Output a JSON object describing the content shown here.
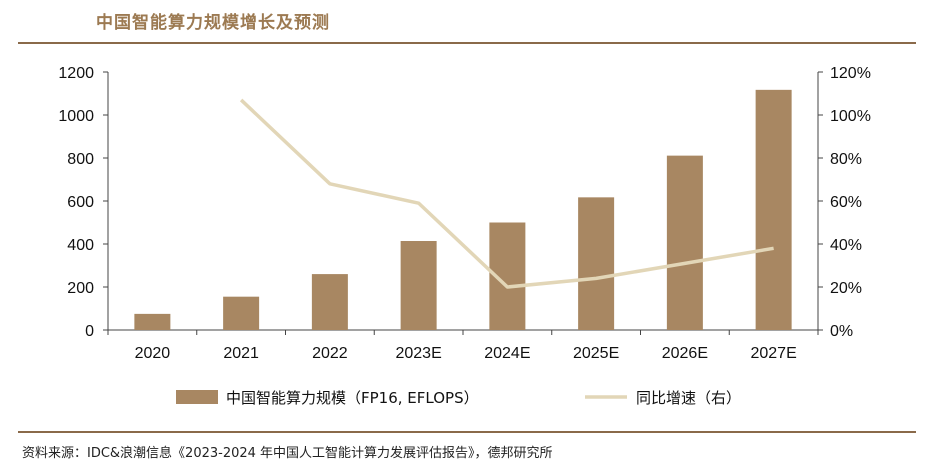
{
  "title": "中国智能算力规模增长及预测",
  "source": "资料来源：IDC&浪潮信息《2023-2024 年中国人工智能计算力发展评估报告》，德邦研究所",
  "chart_data": {
    "type": "bar",
    "categories": [
      "2020",
      "2021",
      "2022",
      "2023E",
      "2024E",
      "2025E",
      "2026E",
      "2027E"
    ],
    "series": [
      {
        "name": "中国智能算力规模（FP16, EFLOPS）",
        "type": "bar",
        "axis": "left",
        "color": "#a88762",
        "values": [
          75,
          155,
          260,
          414,
          500,
          617,
          811,
          1117
        ]
      },
      {
        "name": "同比增速（右）",
        "type": "line",
        "axis": "right",
        "color": "#e2d6b7",
        "values": [
          null,
          107,
          68,
          59,
          20,
          24,
          31,
          38
        ]
      }
    ],
    "y_left": {
      "min": 0,
      "max": 1200,
      "ticks": [
        "0",
        "200",
        "400",
        "600",
        "800",
        "1000",
        "1200"
      ]
    },
    "y_right": {
      "min": 0,
      "max": 120,
      "ticks": [
        "0%",
        "20%",
        "40%",
        "60%",
        "80%",
        "100%",
        "120%"
      ]
    },
    "legend": "bottom",
    "grid": false
  }
}
